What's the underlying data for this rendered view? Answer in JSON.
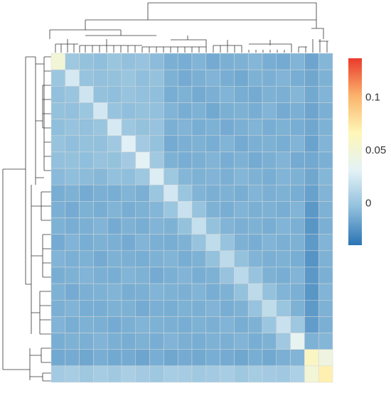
{
  "chart_data": {
    "type": "heatmap",
    "values": [
      [
        0.05,
        0.002,
        -0.002,
        -0.004,
        0.0,
        -0.003,
        -0.001,
        -0.005,
        -0.011,
        -0.012,
        -0.009,
        -0.013,
        -0.011,
        -0.01,
        -0.008,
        -0.012,
        -0.013,
        -0.009,
        -0.016,
        -0.008
      ],
      [
        0.001,
        0.025,
        -0.001,
        -0.003,
        -0.002,
        0.0,
        -0.004,
        -0.002,
        -0.01,
        -0.013,
        -0.011,
        -0.009,
        -0.012,
        -0.014,
        -0.01,
        -0.011,
        -0.009,
        -0.012,
        -0.015,
        -0.01
      ],
      [
        -0.003,
        0.0,
        0.022,
        -0.002,
        -0.004,
        -0.001,
        -0.003,
        -0.004,
        -0.012,
        -0.01,
        -0.013,
        -0.011,
        -0.009,
        -0.012,
        -0.013,
        -0.01,
        -0.011,
        -0.008,
        -0.014,
        -0.009
      ],
      [
        -0.002,
        -0.003,
        0.001,
        0.024,
        -0.001,
        -0.004,
        -0.002,
        -0.003,
        -0.009,
        -0.012,
        -0.01,
        -0.014,
        -0.011,
        -0.01,
        -0.012,
        -0.009,
        -0.013,
        -0.011,
        -0.016,
        -0.011
      ],
      [
        -0.004,
        -0.001,
        -0.003,
        0.0,
        0.026,
        0.002,
        -0.002,
        -0.001,
        -0.011,
        -0.009,
        -0.012,
        -0.01,
        -0.013,
        -0.011,
        -0.009,
        -0.012,
        -0.01,
        -0.012,
        -0.015,
        -0.01
      ],
      [
        -0.001,
        -0.004,
        -0.002,
        -0.003,
        0.003,
        0.03,
        0.004,
        -0.002,
        -0.013,
        -0.011,
        -0.01,
        -0.012,
        -0.009,
        -0.013,
        -0.011,
        -0.01,
        -0.012,
        -0.009,
        -0.017,
        -0.009
      ],
      [
        -0.003,
        -0.002,
        -0.004,
        -0.001,
        -0.002,
        0.004,
        0.032,
        0.003,
        -0.01,
        -0.012,
        -0.011,
        -0.009,
        -0.012,
        -0.01,
        -0.013,
        -0.011,
        -0.009,
        -0.013,
        -0.014,
        -0.011
      ],
      [
        -0.006,
        -0.004,
        -0.005,
        -0.007,
        -0.003,
        -0.004,
        0.002,
        0.028,
        0.002,
        -0.008,
        -0.01,
        -0.009,
        -0.011,
        -0.008,
        -0.01,
        -0.012,
        -0.009,
        -0.01,
        -0.015,
        -0.008
      ],
      [
        -0.012,
        -0.01,
        -0.013,
        -0.011,
        -0.012,
        -0.009,
        -0.011,
        0.001,
        0.024,
        0.0,
        -0.009,
        -0.011,
        -0.01,
        -0.012,
        -0.009,
        -0.011,
        -0.01,
        -0.012,
        -0.018,
        -0.009
      ],
      [
        -0.011,
        -0.013,
        -0.01,
        -0.012,
        -0.009,
        -0.012,
        -0.01,
        -0.008,
        0.001,
        0.02,
        -0.001,
        -0.01,
        -0.012,
        -0.009,
        -0.011,
        -0.01,
        -0.012,
        -0.009,
        -0.022,
        -0.01
      ],
      [
        -0.01,
        -0.012,
        -0.011,
        -0.009,
        -0.013,
        -0.01,
        -0.012,
        -0.009,
        -0.01,
        -0.002,
        0.018,
        -0.002,
        -0.009,
        -0.011,
        -0.01,
        -0.012,
        -0.009,
        -0.011,
        -0.023,
        -0.011
      ],
      [
        -0.013,
        -0.009,
        -0.012,
        -0.01,
        -0.011,
        -0.013,
        -0.009,
        -0.011,
        -0.012,
        -0.01,
        -0.001,
        0.016,
        -0.001,
        -0.01,
        -0.012,
        -0.009,
        -0.011,
        -0.01,
        -0.021,
        -0.009
      ],
      [
        -0.009,
        -0.011,
        -0.01,
        -0.013,
        -0.01,
        -0.011,
        -0.012,
        -0.01,
        -0.009,
        -0.012,
        -0.01,
        -0.002,
        0.015,
        -0.002,
        -0.009,
        -0.011,
        -0.01,
        -0.012,
        -0.024,
        -0.01
      ],
      [
        -0.012,
        -0.01,
        -0.009,
        -0.011,
        -0.012,
        -0.009,
        -0.01,
        -0.013,
        -0.011,
        -0.009,
        -0.012,
        -0.01,
        -0.001,
        0.014,
        -0.001,
        -0.01,
        -0.012,
        -0.009,
        -0.022,
        -0.011
      ],
      [
        -0.01,
        -0.013,
        -0.011,
        -0.01,
        -0.009,
        -0.012,
        -0.011,
        -0.009,
        -0.01,
        -0.011,
        -0.009,
        -0.012,
        -0.01,
        -0.002,
        0.015,
        -0.002,
        -0.009,
        -0.011,
        -0.023,
        -0.009
      ],
      [
        -0.011,
        -0.009,
        -0.012,
        -0.012,
        -0.01,
        -0.01,
        -0.013,
        -0.011,
        -0.012,
        -0.01,
        -0.011,
        -0.009,
        -0.012,
        -0.01,
        -0.001,
        0.016,
        0.0,
        -0.01,
        -0.021,
        -0.01
      ],
      [
        -0.009,
        -0.012,
        -0.01,
        -0.011,
        -0.013,
        -0.011,
        -0.009,
        -0.01,
        -0.011,
        -0.012,
        -0.01,
        -0.011,
        -0.009,
        -0.012,
        -0.01,
        0.001,
        0.02,
        0.002,
        -0.02,
        -0.011
      ],
      [
        -0.012,
        -0.01,
        -0.011,
        -0.009,
        -0.011,
        -0.012,
        -0.01,
        -0.012,
        -0.009,
        -0.011,
        -0.012,
        -0.01,
        -0.011,
        -0.009,
        -0.012,
        -0.01,
        0.003,
        0.035,
        -0.01,
        -0.008
      ],
      [
        -0.014,
        -0.013,
        -0.015,
        -0.012,
        -0.014,
        -0.013,
        -0.016,
        -0.012,
        -0.015,
        -0.013,
        -0.014,
        -0.012,
        -0.013,
        -0.015,
        -0.012,
        -0.014,
        -0.011,
        -0.009,
        0.06,
        0.045
      ],
      [
        0.004,
        0.006,
        0.002,
        0.005,
        0.003,
        0.007,
        0.004,
        0.002,
        0.006,
        0.005,
        0.003,
        0.004,
        0.006,
        0.002,
        0.005,
        0.004,
        0.003,
        0.008,
        0.05,
        0.07
      ]
    ],
    "clim": [
      -0.039,
      0.137
    ],
    "colorbar_ticks": [
      0,
      0.05,
      0.1
    ],
    "colors": [
      "#2a74b4",
      "#90bfdc",
      "#e4f2f7",
      "#fff7b8",
      "#fbb36b",
      "#ea3a2c"
    ]
  }
}
